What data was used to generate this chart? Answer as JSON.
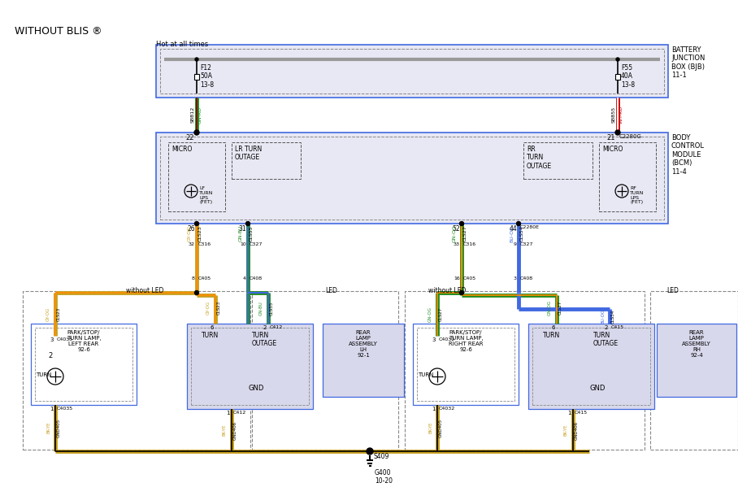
{
  "title": "WITHOUT BLIS ®",
  "hot_at_all_times": "Hot at all times",
  "bg_color": "#ffffff",
  "bjb_label": [
    "BATTERY",
    "JUNCTION",
    "BOX (BJB)",
    "11-1"
  ],
  "bcm_label": [
    "BODY",
    "CONTROL",
    "MODULE",
    "(BCM)",
    "11-4"
  ],
  "ground_label": "G400\n10-20",
  "splice_label": "S409",
  "colors": {
    "GY_OG": "#C8A020",
    "GN_BU_green": "#228B22",
    "GN_BU_blue": "#4169E1",
    "WH_RD": "#DD0000",
    "GN_RD_green": "#228B22",
    "BK_YE": "#C8A020",
    "black": "#000000",
    "blue_box": "#4169E1",
    "box_fill": "#e8e8f4",
    "inner_fill": "#d8d8ec",
    "bus_gray": "#999999"
  }
}
